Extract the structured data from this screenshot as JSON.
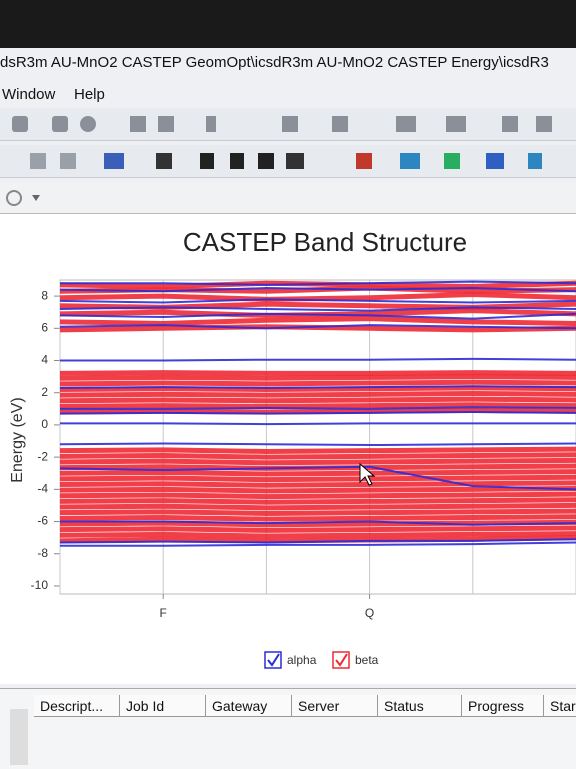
{
  "window_title": "dsR3m AU-MnO2 CASTEP GeomOpt\\icsdR3m AU-MnO2 CASTEP Energy\\icsdR3",
  "menu": [
    "Window",
    "Help"
  ],
  "chart_data": {
    "type": "band",
    "title": "CASTEP Band Structure",
    "y_label": "Energy (eV)",
    "x": [
      0,
      1,
      2,
      3,
      4,
      5
    ],
    "xlim": [
      0,
      5
    ],
    "xticks": [
      {
        "value": 1,
        "label": "F"
      },
      {
        "value": 3,
        "label": "Q"
      }
    ],
    "ylim": [
      -10.5,
      9
    ],
    "yticks": [
      -10,
      -8,
      -6,
      -4,
      -2,
      0,
      2,
      4,
      6,
      8
    ],
    "xgrid": true,
    "series": [
      {
        "name": "beta",
        "color": "#ee2a35",
        "values": [
          [
            -7.2,
            -7.1,
            -7.2,
            -7.15,
            -7.1,
            -7.0
          ],
          [
            -6.85,
            -6.8,
            -6.9,
            -6.85,
            -6.8,
            -6.75
          ],
          [
            -6.5,
            -6.45,
            -6.55,
            -6.5,
            -6.45,
            -6.4
          ],
          [
            -6.15,
            -6.1,
            -6.2,
            -6.15,
            -6.1,
            -6.05
          ],
          [
            -5.8,
            -5.75,
            -5.85,
            -5.8,
            -5.75,
            -5.7
          ],
          [
            -5.45,
            -5.4,
            -5.5,
            -5.45,
            -5.4,
            -5.35
          ],
          [
            -5.1,
            -5.05,
            -5.15,
            -5.1,
            -5.05,
            -5.0
          ],
          [
            -4.75,
            -4.7,
            -4.8,
            -4.75,
            -4.7,
            -4.65
          ],
          [
            -4.4,
            -4.35,
            -4.45,
            -4.4,
            -4.35,
            -4.3
          ],
          [
            -4.05,
            -4.0,
            -4.1,
            -4.05,
            -4.0,
            -3.95
          ],
          [
            -3.7,
            -3.65,
            -3.75,
            -3.7,
            -3.65,
            -3.6
          ],
          [
            -3.35,
            -3.3,
            -3.4,
            -3.35,
            -3.3,
            -3.25
          ],
          [
            -3.0,
            -2.95,
            -3.05,
            -3.0,
            -2.95,
            -2.9
          ],
          [
            -2.65,
            -2.6,
            -2.7,
            -2.65,
            -2.6,
            -2.55
          ],
          [
            -2.3,
            -2.25,
            -2.35,
            -2.3,
            -2.25,
            -2.2
          ],
          [
            -1.95,
            -1.9,
            -2.0,
            -1.95,
            -1.9,
            -1.85
          ],
          [
            -1.6,
            -1.55,
            -1.65,
            -1.6,
            -1.55,
            -1.5
          ],
          [
            0.8,
            0.85,
            0.8,
            0.85,
            0.9,
            0.85
          ],
          [
            1.15,
            1.2,
            1.15,
            1.2,
            1.25,
            1.2
          ],
          [
            1.5,
            1.55,
            1.5,
            1.55,
            1.6,
            1.55
          ],
          [
            1.85,
            1.9,
            1.85,
            1.9,
            1.95,
            1.9
          ],
          [
            2.2,
            2.25,
            2.2,
            2.25,
            2.3,
            2.25
          ],
          [
            2.55,
            2.6,
            2.55,
            2.6,
            2.65,
            2.6
          ],
          [
            2.9,
            2.95,
            2.9,
            2.95,
            3.0,
            2.95
          ],
          [
            3.2,
            3.25,
            3.2,
            3.2,
            3.25,
            3.2
          ],
          [
            5.9,
            6.0,
            6.1,
            6.0,
            5.9,
            6.0
          ],
          [
            6.4,
            6.3,
            6.5,
            6.6,
            6.4,
            6.3
          ],
          [
            6.9,
            7.0,
            6.8,
            6.9,
            7.1,
            6.9
          ],
          [
            7.4,
            7.3,
            7.5,
            7.4,
            7.3,
            7.5
          ],
          [
            7.9,
            8.0,
            7.8,
            7.9,
            8.1,
            7.9
          ],
          [
            8.3,
            8.4,
            8.3,
            8.5,
            8.3,
            8.4
          ],
          [
            8.7,
            8.6,
            8.8,
            8.7,
            8.6,
            8.8
          ]
        ]
      },
      {
        "name": "alpha",
        "color": "#2b2bd6",
        "values": [
          [
            -7.5,
            -7.5,
            -7.45,
            -7.45,
            -7.4,
            -7.3
          ],
          [
            -7.3,
            -7.25,
            -7.3,
            -7.2,
            -7.2,
            -7.1
          ],
          [
            -6.0,
            -6.0,
            -6.1,
            -6.0,
            -6.2,
            -6.1
          ],
          [
            -2.7,
            -2.8,
            -2.7,
            -2.6,
            -3.8,
            -4.0
          ],
          [
            -1.2,
            -1.15,
            -1.2,
            -1.25,
            -1.2,
            -1.15
          ],
          [
            0.1,
            0.1,
            0.05,
            0.1,
            0.1,
            0.1
          ],
          [
            0.7,
            0.75,
            0.7,
            0.75,
            0.8,
            0.75
          ],
          [
            1.0,
            1.0,
            1.05,
            1.0,
            1.1,
            1.05
          ],
          [
            2.3,
            2.35,
            2.3,
            2.35,
            2.4,
            2.35
          ],
          [
            4.0,
            4.0,
            4.05,
            4.05,
            4.1,
            4.05
          ],
          [
            6.1,
            6.2,
            6.0,
            6.2,
            6.1,
            6.0
          ],
          [
            6.8,
            6.7,
            6.9,
            6.8,
            6.6,
            6.9
          ],
          [
            7.2,
            7.3,
            7.2,
            7.1,
            7.3,
            7.2
          ],
          [
            7.7,
            7.6,
            7.8,
            7.7,
            7.6,
            7.7
          ],
          [
            8.4,
            8.3,
            8.5,
            8.4,
            8.5,
            8.3
          ],
          [
            8.8,
            8.8,
            8.7,
            8.8,
            8.9,
            8.8
          ]
        ]
      }
    ]
  },
  "table": {
    "columns": [
      "Descript...",
      "Job Id",
      "Gateway",
      "Server",
      "Status",
      "Progress",
      "Star"
    ]
  }
}
